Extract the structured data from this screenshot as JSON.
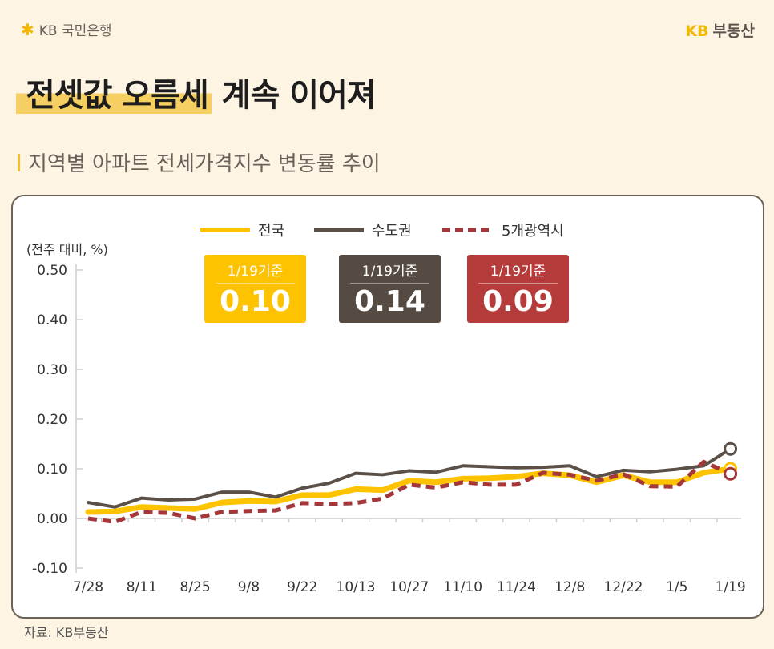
{
  "header": {
    "bank_logo": "KB 국민은행",
    "brand_prefix": "KB",
    "brand_name": "부동산"
  },
  "title": {
    "highlight": "전셋값 오름세",
    "rest": "계속 이어져"
  },
  "subtitle": "지역별 아파트 전세가격지수 변동률 추이",
  "badges": [
    {
      "label": "1/19기준",
      "value": "0.10",
      "color": "#fdc300"
    },
    {
      "label": "1/19기준",
      "value": "0.14",
      "color": "#554b43"
    },
    {
      "label": "1/19기준",
      "value": "0.09",
      "color": "#b53c3b"
    }
  ],
  "source": "자료: KB부동산",
  "chart_data": {
    "type": "line",
    "ylabel": "(전주 대비, %)",
    "ylim": [
      -0.1,
      0.5
    ],
    "yticks": [
      "0.50",
      "0.40",
      "0.30",
      "0.20",
      "0.10",
      "0.00",
      "-0.10"
    ],
    "ytick_values": [
      0.5,
      0.4,
      0.3,
      0.2,
      0.1,
      0.0,
      -0.1
    ],
    "x": [
      "7/28",
      "8/4",
      "8/11",
      "8/18",
      "8/25",
      "9/1",
      "9/8",
      "9/15",
      "9/22",
      "9/29",
      "10/13",
      "10/20",
      "10/27",
      "11/3",
      "11/10",
      "11/17",
      "11/24",
      "12/1",
      "12/8",
      "12/15",
      "12/22",
      "12/29",
      "1/5",
      "1/12",
      "1/19"
    ],
    "xtick_labels": [
      "7/28",
      "8/11",
      "8/25",
      "9/8",
      "9/22",
      "10/13",
      "10/27",
      "11/10",
      "11/24",
      "12/8",
      "12/22",
      "1/5",
      "1/19"
    ],
    "grid": false,
    "legend": "top",
    "series": [
      {
        "name": "전국",
        "color": "#fdc300",
        "style": "solid",
        "values": [
          0.013,
          0.014,
          0.023,
          0.021,
          0.019,
          0.032,
          0.035,
          0.034,
          0.047,
          0.047,
          0.059,
          0.057,
          0.076,
          0.073,
          0.08,
          0.081,
          0.084,
          0.091,
          0.087,
          0.073,
          0.087,
          0.073,
          0.073,
          0.092,
          0.1
        ]
      },
      {
        "name": "수도권",
        "color": "#5a5048",
        "style": "solid",
        "values": [
          0.032,
          0.023,
          0.041,
          0.037,
          0.039,
          0.053,
          0.053,
          0.043,
          0.061,
          0.071,
          0.091,
          0.088,
          0.096,
          0.093,
          0.106,
          0.104,
          0.102,
          0.103,
          0.106,
          0.084,
          0.097,
          0.094,
          0.099,
          0.106,
          0.14
        ]
      },
      {
        "name": "5개광역시",
        "color": "#a3373a",
        "style": "dashed",
        "values": [
          0.0,
          -0.007,
          0.013,
          0.011,
          0.0,
          0.013,
          0.015,
          0.016,
          0.031,
          0.029,
          0.031,
          0.04,
          0.068,
          0.062,
          0.073,
          0.068,
          0.068,
          0.092,
          0.088,
          0.076,
          0.089,
          0.065,
          0.064,
          0.114,
          0.09
        ]
      }
    ]
  }
}
